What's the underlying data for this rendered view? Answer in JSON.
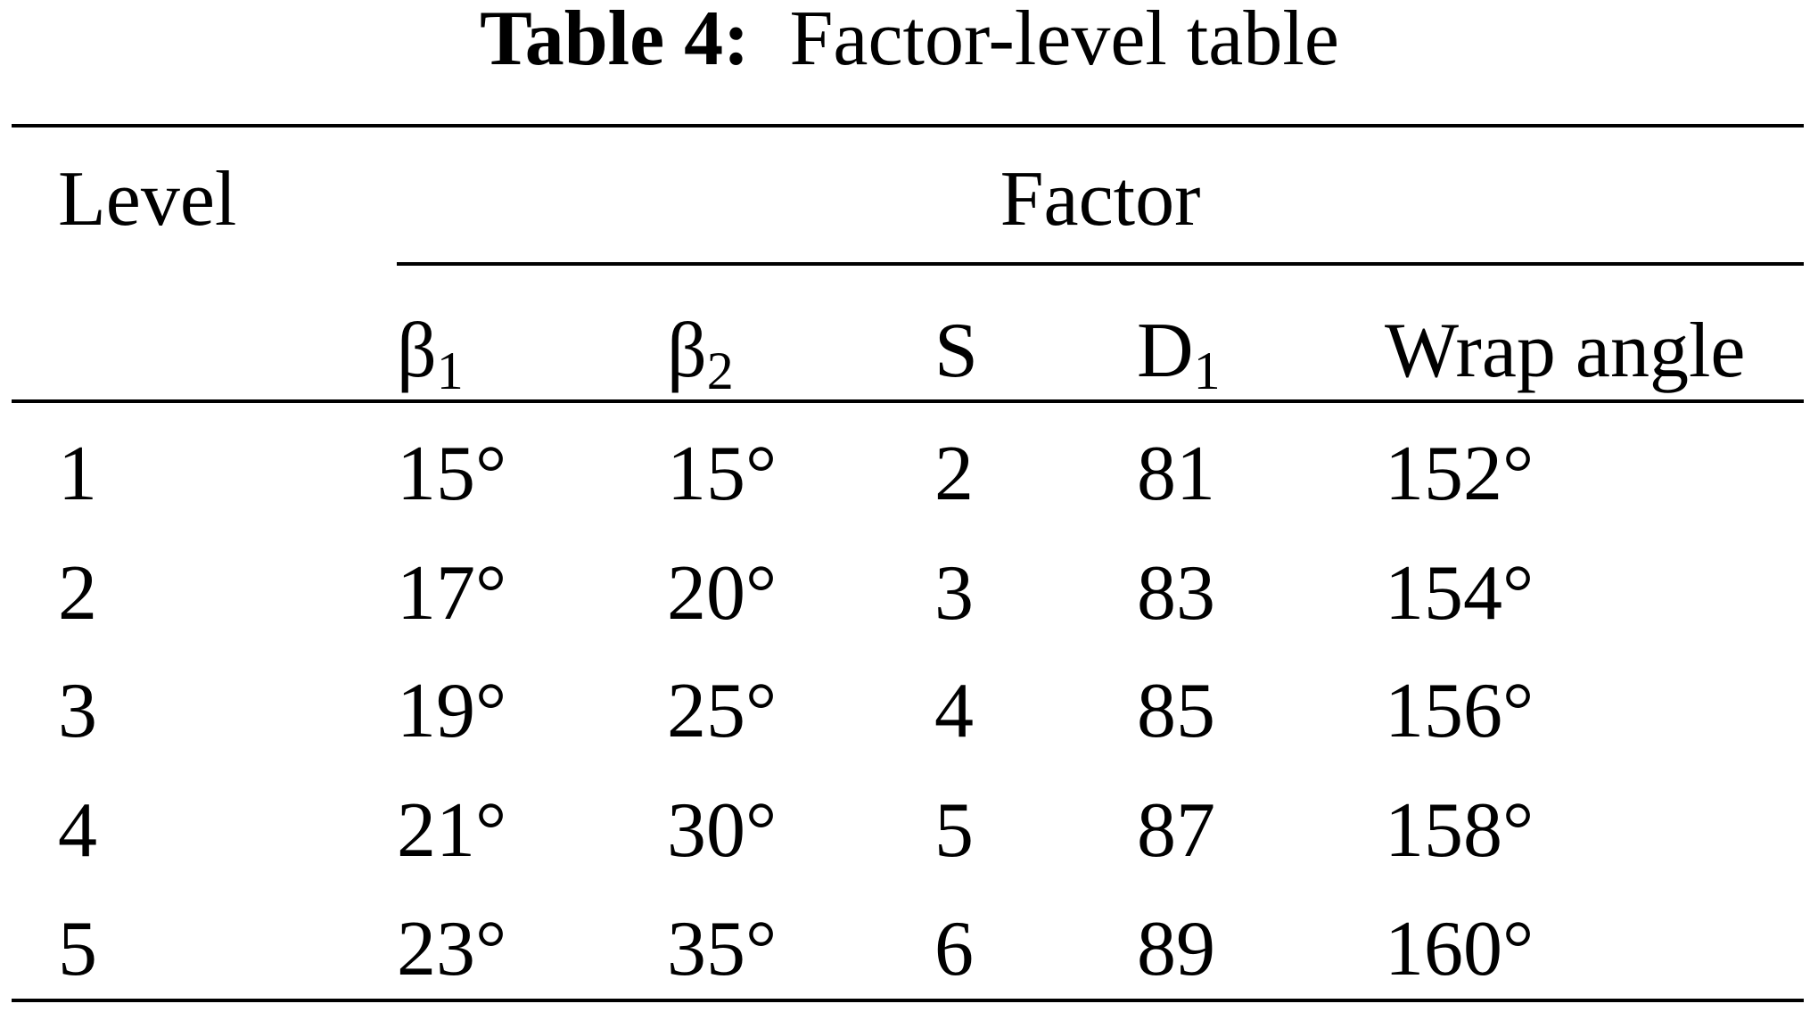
{
  "title": {
    "label": "Table 4:",
    "text": "Factor-level table"
  },
  "table": {
    "header": {
      "level": "Level",
      "group": "Factor"
    },
    "columns": [
      {
        "symbol": "β",
        "subscript": "1"
      },
      {
        "symbol": "β",
        "subscript": "2"
      },
      {
        "symbol": "S"
      },
      {
        "symbol": "D",
        "subscript": "1"
      },
      {
        "symbol": "Wrap angle"
      }
    ],
    "rows": [
      [
        "1",
        "15°",
        "15°",
        "2",
        "81",
        "152°"
      ],
      [
        "2",
        "17°",
        "20°",
        "3",
        "83",
        "154°"
      ],
      [
        "3",
        "19°",
        "25°",
        "4",
        "85",
        "156°"
      ],
      [
        "4",
        "21°",
        "30°",
        "5",
        "87",
        "158°"
      ],
      [
        "5",
        "23°",
        "35°",
        "6",
        "89",
        "160°"
      ]
    ]
  }
}
